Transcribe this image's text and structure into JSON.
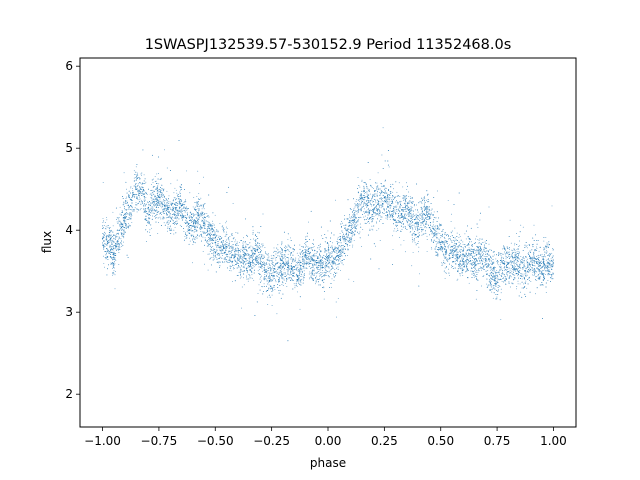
{
  "chart_data": {
    "type": "scatter",
    "title": "1SWASPJ132539.57-530152.9 Period 11352468.0s",
    "xlabel": "phase",
    "ylabel": "flux",
    "xlim": [
      -1.1,
      1.1
    ],
    "ylim": [
      1.6,
      6.1
    ],
    "xticks": [
      -1.0,
      -0.75,
      -0.5,
      -0.25,
      0.0,
      0.25,
      0.5,
      0.75,
      1.0
    ],
    "xtick_labels": [
      "−1.00",
      "−0.75",
      "−0.50",
      "−0.25",
      "0.00",
      "0.25",
      "0.50",
      "0.75",
      "1.00"
    ],
    "yticks": [
      2,
      3,
      4,
      5,
      6
    ],
    "ytick_labels": [
      "2",
      "3",
      "4",
      "5",
      "6"
    ],
    "grid": false,
    "marker_color": "#1f77b4",
    "series": [
      {
        "x": [
          -1.0,
          -0.975,
          -0.95,
          -0.925,
          -0.9,
          -0.875,
          -0.85,
          -0.825,
          -0.8,
          -0.775,
          -0.75,
          -0.725,
          -0.7,
          -0.675,
          -0.65,
          -0.625,
          -0.6,
          -0.575,
          -0.55,
          -0.525,
          -0.5,
          -0.475,
          -0.45,
          -0.425,
          -0.4,
          -0.375,
          -0.35,
          -0.325,
          -0.3,
          -0.275,
          -0.25,
          -0.225,
          -0.2,
          -0.175,
          -0.15,
          -0.125,
          -0.1,
          -0.075,
          -0.05,
          -0.025,
          0.0,
          0.025,
          0.05,
          0.075,
          0.1,
          0.125,
          0.15,
          0.175,
          0.2,
          0.225,
          0.25,
          0.275,
          0.3,
          0.325,
          0.35,
          0.375,
          0.4,
          0.425,
          0.45,
          0.475,
          0.5,
          0.525,
          0.55,
          0.575,
          0.6,
          0.625,
          0.65,
          0.675,
          0.7,
          0.725,
          0.75,
          0.775,
          0.8,
          0.825,
          0.85,
          0.875,
          0.9,
          0.925,
          0.95,
          0.975,
          1.0
        ],
        "y": [
          3.9,
          3.85,
          3.7,
          4.0,
          4.15,
          4.3,
          4.5,
          4.45,
          4.2,
          4.35,
          4.4,
          4.3,
          4.2,
          4.25,
          4.3,
          4.1,
          4.05,
          4.2,
          4.1,
          3.95,
          3.85,
          3.75,
          3.8,
          3.7,
          3.65,
          3.7,
          3.6,
          3.75,
          3.65,
          3.5,
          3.45,
          3.6,
          3.55,
          3.6,
          3.55,
          3.5,
          3.7,
          3.65,
          3.6,
          3.55,
          3.65,
          3.6,
          3.75,
          3.9,
          4.0,
          4.15,
          4.4,
          4.3,
          4.25,
          4.35,
          4.4,
          4.3,
          4.2,
          4.2,
          4.3,
          4.1,
          4.05,
          4.2,
          4.15,
          3.95,
          3.85,
          3.75,
          3.8,
          3.7,
          3.65,
          3.7,
          3.6,
          3.75,
          3.65,
          3.45,
          3.45,
          3.6,
          3.6,
          3.6,
          3.55,
          3.5,
          3.65,
          3.6,
          3.55,
          3.6,
          3.6
        ]
      }
    ]
  }
}
